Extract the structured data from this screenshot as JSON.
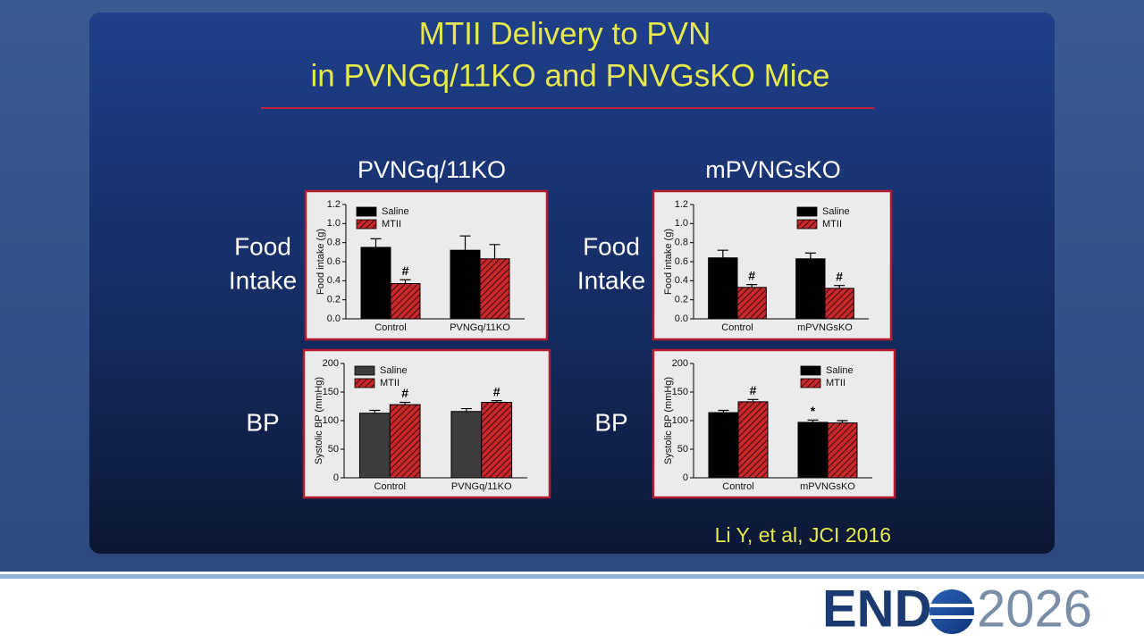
{
  "slide": {
    "title_lines": [
      "MTII Delivery to PVN",
      "in PVNGq/11KO and PNVGsKO Mice"
    ],
    "column_headers": [
      "PVNGq/11KO",
      "mPVNGsKO"
    ],
    "row_labels": [
      [
        "Food",
        "Intake"
      ],
      [
        "BP"
      ]
    ],
    "citation": "Li Y, et al, JCI 2016",
    "logo": {
      "left": "END",
      "right": "2026"
    }
  },
  "chart_data": [
    {
      "type": "bar",
      "ylabel": "Food intake (g)",
      "categories": [
        "Control",
        "PVNGq/11KO"
      ],
      "ylim": [
        0,
        1.2
      ],
      "yticks": [
        {
          "value": 0,
          "label": "0.0"
        },
        0.2,
        0.4,
        0.6,
        0.8,
        {
          "value": 1,
          "label": "1.0"
        },
        1.2
      ],
      "legend": "upper left",
      "series": [
        {
          "name": "Saline",
          "color": "#000000",
          "values": [
            0.75,
            0.72
          ],
          "errors": [
            0.09,
            0.15
          ],
          "annotations": [
            null,
            null
          ]
        },
        {
          "name": "MTII",
          "color": "#c8282c",
          "pattern": "hatch",
          "values": [
            0.37,
            0.63
          ],
          "errors": [
            0.04,
            0.15
          ],
          "annotations": [
            "#",
            null
          ]
        }
      ]
    },
    {
      "type": "bar",
      "ylabel": "Food intake (g)",
      "categories": [
        "Control",
        "mPVNGsKO"
      ],
      "ylim": [
        0,
        1.2
      ],
      "yticks": [
        {
          "value": 0,
          "label": "0.0"
        },
        0.2,
        0.4,
        0.6,
        0.8,
        {
          "value": 1,
          "label": "1.0"
        },
        1.2
      ],
      "legend": "upper right",
      "series": [
        {
          "name": "Saline",
          "color": "#000000",
          "values": [
            0.64,
            0.63
          ],
          "errors": [
            0.08,
            0.06
          ],
          "annotations": [
            null,
            null
          ]
        },
        {
          "name": "MTII",
          "color": "#c8282c",
          "pattern": "hatch",
          "values": [
            0.33,
            0.32
          ],
          "errors": [
            0.03,
            0.03
          ],
          "annotations": [
            "#",
            "#"
          ]
        }
      ]
    },
    {
      "type": "bar",
      "ylabel": "Systolic BP (mmHg)",
      "categories": [
        "Control",
        "PVNGq/11KO"
      ],
      "ylim": [
        0,
        200
      ],
      "yticks": [
        0,
        50,
        100,
        150,
        200
      ],
      "legend": "upper left",
      "series": [
        {
          "name": "Saline",
          "color": "#3c3c3c",
          "values": [
            113,
            116
          ],
          "errors": [
            5,
            5
          ],
          "annotations": [
            null,
            null
          ]
        },
        {
          "name": "MTII",
          "color": "#c8282c",
          "pattern": "hatch",
          "values": [
            128,
            132
          ],
          "errors": [
            4,
            3
          ],
          "annotations": [
            "#",
            "#"
          ]
        }
      ]
    },
    {
      "type": "bar",
      "ylabel": "Systolic BP (mmHg)",
      "categories": [
        "Control",
        "mPVNGsKO"
      ],
      "ylim": [
        0,
        200
      ],
      "yticks": [
        0,
        50,
        100,
        150,
        200
      ],
      "legend": "upper right",
      "series": [
        {
          "name": "Saline",
          "color": "#000000",
          "values": [
            114,
            97
          ],
          "errors": [
            4,
            4
          ],
          "annotations": [
            null,
            "*"
          ]
        },
        {
          "name": "MTII",
          "color": "#c8282c",
          "pattern": "hatch",
          "values": [
            133,
            96
          ],
          "errors": [
            4,
            4
          ],
          "annotations": [
            "#",
            null
          ]
        }
      ]
    }
  ]
}
